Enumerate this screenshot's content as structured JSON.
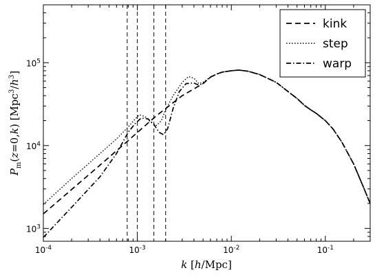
{
  "chart_data": {
    "type": "line",
    "xscale": "log",
    "yscale": "log",
    "xlim": [
      0.0001,
      0.3
    ],
    "ylim": [
      700,
      500000
    ],
    "xlabel": "k [h/Mpc]",
    "ylabel": "P_m(z=0,k) [Mpc^3/h^3]",
    "grid": false,
    "legend_position": "top-right",
    "x_ticks": [
      {
        "value": 0.0001,
        "base": "10",
        "exp": "-4"
      },
      {
        "value": 0.001,
        "base": "10",
        "exp": "-3"
      },
      {
        "value": 0.01,
        "base": "10",
        "exp": "-2"
      },
      {
        "value": 0.1,
        "base": "10",
        "exp": "-1"
      }
    ],
    "y_ticks": [
      {
        "value": 1000,
        "base": "10",
        "exp": "3"
      },
      {
        "value": 10000,
        "base": "10",
        "exp": "4"
      },
      {
        "value": 100000,
        "base": "10",
        "exp": "5"
      }
    ],
    "vlines": [
      0.00078,
      0.001,
      0.0015,
      0.002
    ],
    "series": [
      {
        "name": "kink",
        "dash": "dashed",
        "points": [
          [
            0.0001,
            1500
          ],
          [
            0.0002,
            2950
          ],
          [
            0.0004,
            5800
          ],
          [
            0.0008,
            11500
          ],
          [
            0.0016,
            23000
          ],
          [
            0.003,
            40000
          ],
          [
            0.005,
            56000
          ],
          [
            0.006,
            67000
          ],
          [
            0.007,
            73000
          ],
          [
            0.008,
            77000
          ],
          [
            0.01,
            80000
          ],
          [
            0.012,
            81500
          ],
          [
            0.015,
            79000
          ],
          [
            0.02,
            72000
          ],
          [
            0.03,
            58000
          ],
          [
            0.04,
            45000
          ],
          [
            0.05,
            37000
          ],
          [
            0.06,
            30500
          ],
          [
            0.07,
            27000
          ],
          [
            0.08,
            24500
          ],
          [
            0.1,
            20000
          ],
          [
            0.12,
            16000
          ],
          [
            0.15,
            11000
          ],
          [
            0.2,
            6000
          ],
          [
            0.25,
            3300
          ],
          [
            0.3,
            2000
          ]
        ]
      },
      {
        "name": "step",
        "dash": "dotted",
        "points": [
          [
            0.0001,
            1950
          ],
          [
            0.0002,
            4000
          ],
          [
            0.0004,
            8000
          ],
          [
            0.0006,
            12000
          ],
          [
            0.0008,
            16800
          ],
          [
            0.00095,
            21000
          ],
          [
            0.00105,
            23500
          ],
          [
            0.0012,
            22500
          ],
          [
            0.0014,
            19000
          ],
          [
            0.0016,
            17500
          ],
          [
            0.0018,
            20000
          ],
          [
            0.002,
            27000
          ],
          [
            0.0024,
            40000
          ],
          [
            0.003,
            58000
          ],
          [
            0.0035,
            68000
          ],
          [
            0.004,
            65000
          ],
          [
            0.0045,
            56000
          ],
          [
            0.005,
            58000
          ],
          [
            0.006,
            67000
          ],
          [
            0.007,
            73000
          ],
          [
            0.008,
            77000
          ],
          [
            0.01,
            80000
          ],
          [
            0.012,
            81500
          ],
          [
            0.015,
            79000
          ],
          [
            0.02,
            72000
          ],
          [
            0.03,
            58000
          ],
          [
            0.04,
            45000
          ],
          [
            0.05,
            37000
          ],
          [
            0.06,
            30500
          ],
          [
            0.07,
            27000
          ],
          [
            0.08,
            24500
          ],
          [
            0.1,
            20000
          ],
          [
            0.12,
            16000
          ],
          [
            0.15,
            11000
          ],
          [
            0.2,
            6000
          ],
          [
            0.25,
            3300
          ],
          [
            0.3,
            2000
          ]
        ]
      },
      {
        "name": "warp",
        "dash": "dashdot",
        "points": [
          [
            0.0001,
            780
          ],
          [
            0.0002,
            1800
          ],
          [
            0.0004,
            4200
          ],
          [
            0.0006,
            8000
          ],
          [
            0.0008,
            14500
          ],
          [
            0.00095,
            18500
          ],
          [
            0.0011,
            21500
          ],
          [
            0.0013,
            21000
          ],
          [
            0.0015,
            18000
          ],
          [
            0.0017,
            14500
          ],
          [
            0.0019,
            13500
          ],
          [
            0.0021,
            16000
          ],
          [
            0.0024,
            28000
          ],
          [
            0.0028,
            45000
          ],
          [
            0.0033,
            56000
          ],
          [
            0.004,
            57000
          ],
          [
            0.0045,
            53500
          ],
          [
            0.005,
            56000
          ],
          [
            0.006,
            67000
          ],
          [
            0.007,
            73000
          ],
          [
            0.008,
            77000
          ],
          [
            0.01,
            80000
          ],
          [
            0.012,
            81500
          ],
          [
            0.015,
            79000
          ],
          [
            0.02,
            72000
          ],
          [
            0.03,
            58000
          ],
          [
            0.04,
            45000
          ],
          [
            0.05,
            37000
          ],
          [
            0.06,
            30500
          ],
          [
            0.07,
            27000
          ],
          [
            0.08,
            24500
          ],
          [
            0.1,
            20000
          ],
          [
            0.12,
            16000
          ],
          [
            0.15,
            11000
          ],
          [
            0.2,
            6000
          ],
          [
            0.25,
            3300
          ],
          [
            0.3,
            2000
          ]
        ]
      }
    ]
  }
}
